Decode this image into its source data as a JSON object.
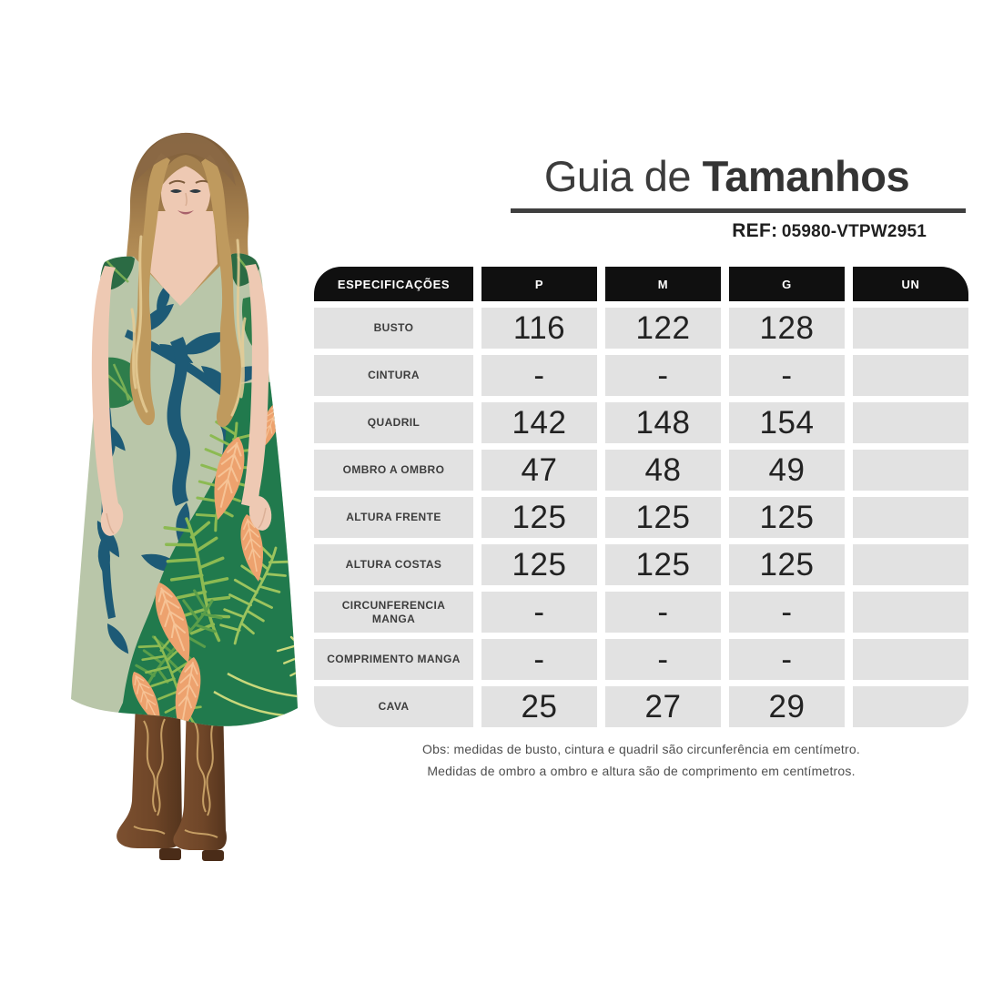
{
  "header": {
    "title_regular": "Guia de ",
    "title_bold": "Tamanhos",
    "ref_label": "REF:",
    "ref_value": "05980-VTPW2951"
  },
  "size_table": {
    "columns": [
      "ESPECIFICAÇÕES",
      "P",
      "M",
      "G",
      "UN"
    ],
    "rows": [
      {
        "label": "BUSTO",
        "values": [
          "116",
          "122",
          "128",
          ""
        ]
      },
      {
        "label": "CINTURA",
        "values": [
          "-",
          "-",
          "-",
          ""
        ]
      },
      {
        "label": "QUADRIL",
        "values": [
          "142",
          "148",
          "154",
          ""
        ]
      },
      {
        "label": "OMBRO A OMBRO",
        "values": [
          "47",
          "48",
          "49",
          ""
        ]
      },
      {
        "label": "ALTURA FRENTE",
        "values": [
          "125",
          "125",
          "125",
          ""
        ]
      },
      {
        "label": "ALTURA COSTAS",
        "values": [
          "125",
          "125",
          "125",
          ""
        ]
      },
      {
        "label": "CIRCUNFERENCIA MANGA",
        "values": [
          "-",
          "-",
          "-",
          ""
        ]
      },
      {
        "label": "COMPRIMENTO MANGA",
        "values": [
          "-",
          "-",
          "-",
          ""
        ]
      },
      {
        "label": "CAVA",
        "values": [
          "25",
          "27",
          "29",
          ""
        ]
      }
    ]
  },
  "footnote": {
    "line1": "Obs: medidas de busto, cintura e quadril são circunferência em centímetro.",
    "line2": "Medidas de ombro a ombro e altura são de comprimento em centímetros."
  },
  "photo": {
    "description": "model wearing sleeveless tropical-print midi dress and brown cowboy boots",
    "palette": {
      "dress_sage": "#b9c6a9",
      "leaf_teal": "#1d5a76",
      "panel_green": "#217a4d",
      "frond_green": "#8cba52",
      "flower_orange": "#eda26e",
      "boot_brown": "#6f4628",
      "hair_blonde": "#cfa96a",
      "skin": "#eec9b3"
    }
  },
  "colors": {
    "table_header_bg": "#101010",
    "table_cell_bg": "#e2e2e2",
    "title_text": "#3c3c3c",
    "underline": "#3f3f3f"
  }
}
